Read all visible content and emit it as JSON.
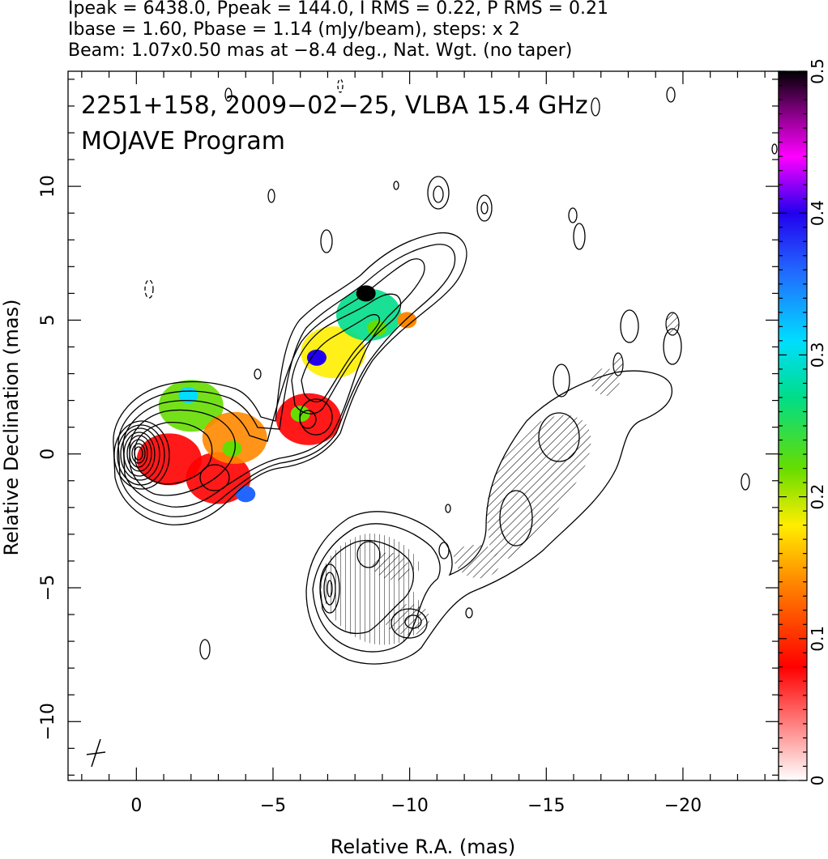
{
  "header": {
    "line1": "Ipeak = 6438.0, Ppeak = 144.0, I RMS = 0.22, P RMS = 0.21",
    "line2": "Ibase = 1.60, Pbase = 1.14 (mJy/beam), steps: x 2",
    "line3": "Beam: 1.07x0.50 mas at −8.4 deg., Nat. Wgt. (no taper)"
  },
  "plot": {
    "title_line1": "2251+158, 2009−02−25, VLBA 15.4 GHz",
    "title_line2": "MOJAVE Program"
  },
  "chart_data": {
    "type": "heatmap",
    "title": "2251+158, 2009−02−25, VLBA 15.4 GHz",
    "subtitle": "MOJAVE Program",
    "xlabel": "Relative R.A. (mas)",
    "ylabel": "Relative Declination (mas)",
    "xlim": [
      2.5,
      -23.5
    ],
    "ylim": [
      -12.2,
      14.3
    ],
    "x_ticks": [
      0,
      -5,
      -10,
      -15,
      -20
    ],
    "x_tick_labels": [
      "0",
      "−5",
      "−10",
      "−15",
      "−20"
    ],
    "y_ticks": [
      -10,
      -5,
      0,
      5,
      10
    ],
    "y_tick_labels": [
      "−10",
      "−5",
      "0",
      "5",
      "10"
    ],
    "colorbar": {
      "range": [
        0,
        0.5
      ],
      "ticks": [
        0,
        0.1,
        0.2,
        0.3,
        0.4,
        0.5
      ],
      "tick_labels": [
        "0",
        "0.1",
        "0.2",
        "0.3",
        "0.4",
        "0.5"
      ],
      "stops": [
        {
          "v": 0.0,
          "color": "#ffffff"
        },
        {
          "v": 0.08,
          "color": "#ff0000"
        },
        {
          "v": 0.14,
          "color": "#ff8800"
        },
        {
          "v": 0.18,
          "color": "#ffee00"
        },
        {
          "v": 0.22,
          "color": "#66dd00"
        },
        {
          "v": 0.27,
          "color": "#00dd88"
        },
        {
          "v": 0.31,
          "color": "#00ddff"
        },
        {
          "v": 0.36,
          "color": "#2266ff"
        },
        {
          "v": 0.4,
          "color": "#2200ee"
        },
        {
          "v": 0.44,
          "color": "#ff00ff"
        },
        {
          "v": 0.47,
          "color": "#880088"
        },
        {
          "v": 0.5,
          "color": "#000000"
        }
      ]
    },
    "core_position": [
      0,
      0
    ],
    "stokes_I_contours_center": [
      0,
      0
    ],
    "polarized_jet_components": [
      {
        "x": -1.2,
        "y": -0.2,
        "fpol": 0.08
      },
      {
        "x": -2.0,
        "y": 1.8,
        "fpol": 0.2
      },
      {
        "x": -3.0,
        "y": -0.9,
        "fpol": 0.03
      },
      {
        "x": -3.6,
        "y": 0.6,
        "fpol": 0.12
      },
      {
        "x": -6.3,
        "y": 1.3,
        "fpol": 0.05
      },
      {
        "x": -7.2,
        "y": 3.8,
        "fpol": 0.18
      },
      {
        "x": -8.5,
        "y": 5.2,
        "fpol": 0.25
      }
    ],
    "polarized_intensity_contours_center": [
      -7,
      -5
    ]
  },
  "colors": {
    "axes": "#000000",
    "background": "#ffffff",
    "hatch": "#000000"
  }
}
